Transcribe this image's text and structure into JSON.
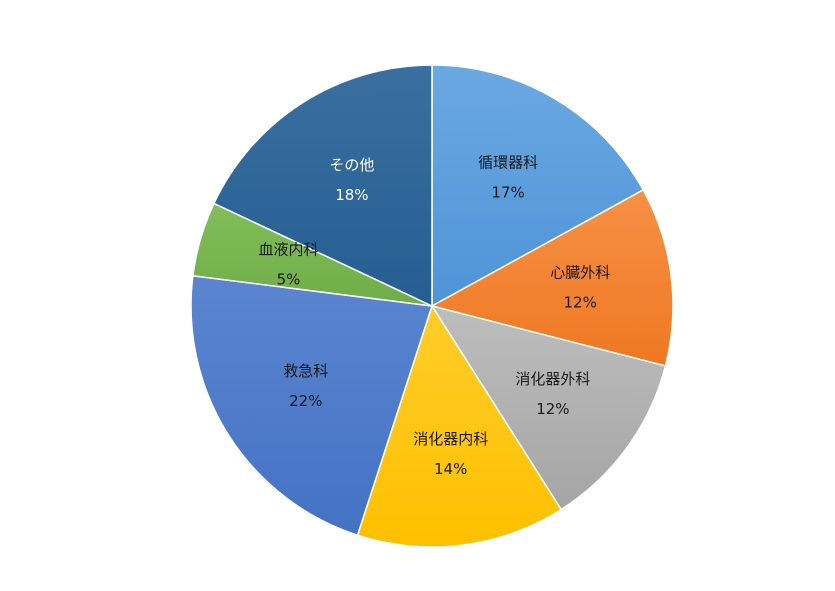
{
  "chart_data": {
    "type": "pie",
    "title": "",
    "legend": "none",
    "slices": [
      {
        "label": "循環器科",
        "value": 17,
        "value_label": "17%",
        "color": "#4f94d8",
        "color_light": "#6aa8e2",
        "text_color": "#1a1a1a"
      },
      {
        "label": "心臓外科",
        "value": 12,
        "value_label": "12%",
        "color": "#ef7822",
        "color_light": "#f79046",
        "text_color": "#1a1a1a"
      },
      {
        "label": "消化器外科",
        "value": 12,
        "value_label": "12%",
        "color": "#a5a5a5",
        "color_light": "#bdbdbd",
        "text_color": "#1a1a1a"
      },
      {
        "label": "消化器内科",
        "value": 14,
        "value_label": "14%",
        "color": "#fec000",
        "color_light": "#ffcc2a",
        "text_color": "#1a1a1a"
      },
      {
        "label": "救急科",
        "value": 22,
        "value_label": "22%",
        "color": "#4472c4",
        "color_light": "#5b85d0",
        "text_color": "#1a1a1a"
      },
      {
        "label": "血液内科",
        "value": 5,
        "value_label": "5%",
        "color": "#70ad47",
        "color_light": "#82bd59",
        "text_color": "#1a1a1a"
      },
      {
        "label": "その他",
        "value": 18,
        "value_label": "18%",
        "color": "#255e91",
        "color_light": "#3a6fa0",
        "text_color": "#ffffff"
      }
    ]
  }
}
